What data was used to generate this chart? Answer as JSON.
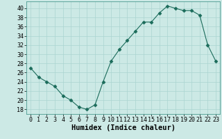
{
  "x": [
    0,
    1,
    2,
    3,
    4,
    5,
    6,
    7,
    8,
    9,
    10,
    11,
    12,
    13,
    14,
    15,
    16,
    17,
    18,
    19,
    20,
    21,
    22,
    23
  ],
  "y": [
    27,
    25,
    24,
    23,
    21,
    20,
    18.5,
    18,
    19,
    24,
    28.5,
    31,
    33,
    35,
    37,
    37,
    39,
    40.5,
    40,
    39.5,
    39.5,
    38.5,
    32,
    28.5
  ],
  "line_color": "#1a6b5a",
  "marker": "D",
  "marker_size": 2.5,
  "bg_color": "#cce9e5",
  "grid_color": "#aad4d0",
  "xlabel": "Humidex (Indice chaleur)",
  "ylim": [
    17,
    41.5
  ],
  "xlim": [
    -0.5,
    23.5
  ],
  "yticks": [
    18,
    20,
    22,
    24,
    26,
    28,
    30,
    32,
    34,
    36,
    38,
    40
  ],
  "xticks": [
    0,
    1,
    2,
    3,
    4,
    5,
    6,
    7,
    8,
    9,
    10,
    11,
    12,
    13,
    14,
    15,
    16,
    17,
    18,
    19,
    20,
    21,
    22,
    23
  ],
  "xlabel_fontsize": 7.5,
  "tick_fontsize": 6.0
}
